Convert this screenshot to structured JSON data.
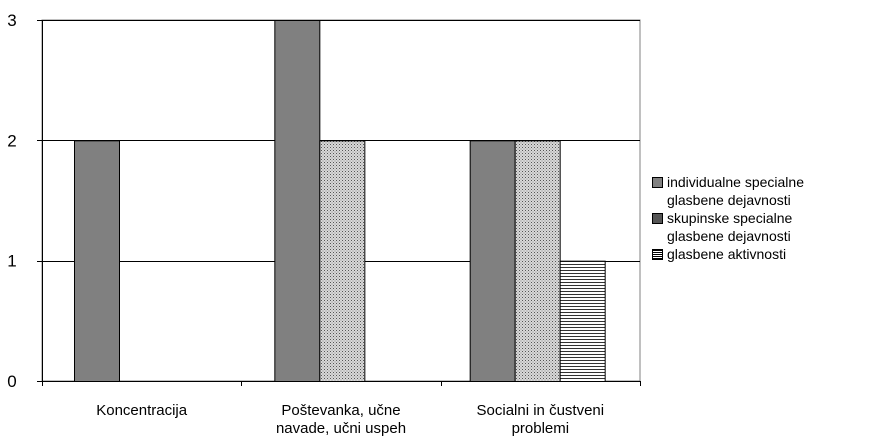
{
  "chart_data": {
    "type": "bar",
    "categories": [
      [
        "Koncentracija"
      ],
      [
        "Poštevanka, učne",
        "navade, učni uspeh"
      ],
      [
        "Socialni in čustveni",
        "problemi"
      ]
    ],
    "series": [
      {
        "name": [
          "individualne specialne",
          "glasbene dejavnosti"
        ],
        "values": [
          2,
          3,
          2
        ],
        "fill": "#808080",
        "pattern": "solid"
      },
      {
        "name": [
          "skupinske specialne",
          "glasbene dejavnosti"
        ],
        "values": [
          0,
          2,
          2
        ],
        "fill": "#d0d0d0",
        "pattern": "dots"
      },
      {
        "name": [
          "glasbene aktivnosti"
        ],
        "values": [
          0,
          0,
          1
        ],
        "fill": "#ffffff",
        "pattern": "horizontal-lines"
      }
    ],
    "ylim": [
      0,
      3
    ],
    "yticks": [
      0,
      1,
      2,
      3
    ],
    "grid": true,
    "legend_position": "right"
  }
}
